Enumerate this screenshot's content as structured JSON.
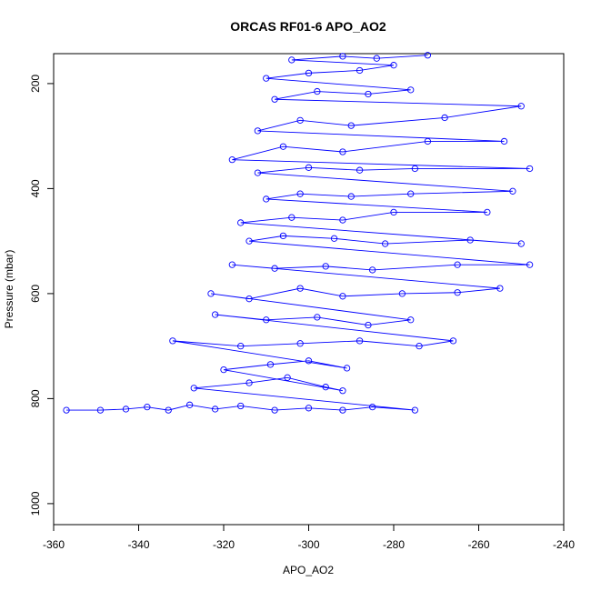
{
  "chart_data": {
    "type": "scatter",
    "title": "ORCAS RF01-6 APO_AO2",
    "xlabel": "APO_AO2",
    "ylabel": "Pressure (mbar)",
    "xlim": [
      -360,
      -240
    ],
    "ylim": [
      1040,
      143
    ],
    "y_axis_inverted": true,
    "x_ticks": [
      -360,
      -340,
      -320,
      -300,
      -280,
      -260,
      -240
    ],
    "y_ticks": [
      200,
      400,
      600,
      800,
      1000
    ],
    "marker": "open-circle",
    "connected": true,
    "color": "#0000ff",
    "series": [
      {
        "values": [
          {
            "x": -357,
            "y": 822
          },
          {
            "x": -349,
            "y": 822
          },
          {
            "x": -343,
            "y": 820
          },
          {
            "x": -338,
            "y": 816
          },
          {
            "x": -333,
            "y": 822
          },
          {
            "x": -328,
            "y": 812
          },
          {
            "x": -322,
            "y": 820
          },
          {
            "x": -316,
            "y": 814
          },
          {
            "x": -308,
            "y": 822
          },
          {
            "x": -300,
            "y": 818
          },
          {
            "x": -292,
            "y": 822
          },
          {
            "x": -285,
            "y": 816
          },
          {
            "x": -275,
            "y": 822
          },
          {
            "x": -327,
            "y": 780
          },
          {
            "x": -314,
            "y": 770
          },
          {
            "x": -305,
            "y": 760
          },
          {
            "x": -296,
            "y": 778
          },
          {
            "x": -292,
            "y": 785
          },
          {
            "x": -320,
            "y": 745
          },
          {
            "x": -309,
            "y": 735
          },
          {
            "x": -300,
            "y": 728
          },
          {
            "x": -291,
            "y": 742
          },
          {
            "x": -332,
            "y": 690
          },
          {
            "x": -316,
            "y": 700
          },
          {
            "x": -302,
            "y": 695
          },
          {
            "x": -288,
            "y": 690
          },
          {
            "x": -274,
            "y": 700
          },
          {
            "x": -266,
            "y": 690
          },
          {
            "x": -322,
            "y": 640
          },
          {
            "x": -310,
            "y": 650
          },
          {
            "x": -298,
            "y": 645
          },
          {
            "x": -286,
            "y": 660
          },
          {
            "x": -276,
            "y": 650
          },
          {
            "x": -323,
            "y": 600
          },
          {
            "x": -314,
            "y": 610
          },
          {
            "x": -302,
            "y": 590
          },
          {
            "x": -292,
            "y": 605
          },
          {
            "x": -278,
            "y": 600
          },
          {
            "x": -265,
            "y": 598
          },
          {
            "x": -255,
            "y": 590
          },
          {
            "x": -318,
            "y": 545
          },
          {
            "x": -308,
            "y": 552
          },
          {
            "x": -296,
            "y": 548
          },
          {
            "x": -285,
            "y": 555
          },
          {
            "x": -265,
            "y": 545
          },
          {
            "x": -248,
            "y": 545
          },
          {
            "x": -314,
            "y": 500
          },
          {
            "x": -306,
            "y": 490
          },
          {
            "x": -294,
            "y": 495
          },
          {
            "x": -282,
            "y": 505
          },
          {
            "x": -262,
            "y": 498
          },
          {
            "x": -250,
            "y": 505
          },
          {
            "x": -316,
            "y": 465
          },
          {
            "x": -304,
            "y": 455
          },
          {
            "x": -292,
            "y": 460
          },
          {
            "x": -280,
            "y": 445
          },
          {
            "x": -258,
            "y": 445
          },
          {
            "x": -310,
            "y": 420
          },
          {
            "x": -302,
            "y": 410
          },
          {
            "x": -290,
            "y": 415
          },
          {
            "x": -276,
            "y": 410
          },
          {
            "x": -252,
            "y": 405
          },
          {
            "x": -312,
            "y": 370
          },
          {
            "x": -300,
            "y": 360
          },
          {
            "x": -288,
            "y": 365
          },
          {
            "x": -275,
            "y": 362
          },
          {
            "x": -248,
            "y": 362
          },
          {
            "x": -318,
            "y": 345
          },
          {
            "x": -306,
            "y": 320
          },
          {
            "x": -292,
            "y": 330
          },
          {
            "x": -272,
            "y": 310
          },
          {
            "x": -254,
            "y": 310
          },
          {
            "x": -312,
            "y": 290
          },
          {
            "x": -302,
            "y": 270
          },
          {
            "x": -290,
            "y": 280
          },
          {
            "x": -268,
            "y": 265
          },
          {
            "x": -250,
            "y": 243
          },
          {
            "x": -308,
            "y": 230
          },
          {
            "x": -298,
            "y": 215
          },
          {
            "x": -286,
            "y": 220
          },
          {
            "x": -276,
            "y": 212
          },
          {
            "x": -310,
            "y": 190
          },
          {
            "x": -300,
            "y": 180
          },
          {
            "x": -288,
            "y": 175
          },
          {
            "x": -280,
            "y": 165
          },
          {
            "x": -304,
            "y": 155
          },
          {
            "x": -292,
            "y": 148
          },
          {
            "x": -284,
            "y": 152
          },
          {
            "x": -272,
            "y": 146
          }
        ]
      }
    ]
  }
}
